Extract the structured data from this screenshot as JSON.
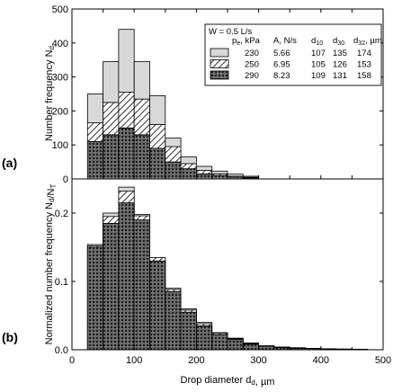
{
  "chart_data": [
    {
      "panel": "(a)",
      "type": "bar",
      "stacked": true,
      "ylabel": "Number frequency N_d",
      "xlim": [
        0,
        500
      ],
      "ylim": [
        0,
        500
      ],
      "yticks": [
        0,
        100,
        200,
        300,
        400,
        500
      ],
      "bin_width": 25,
      "x": [
        37.5,
        62.5,
        87.5,
        112.5,
        137.5,
        162.5,
        187.5,
        212.5,
        237.5,
        262.5,
        287.5
      ],
      "series": [
        {
          "name": "290",
          "pattern": "crosshatch",
          "values": [
            110,
            130,
            150,
            130,
            90,
            50,
            30,
            15,
            10,
            5,
            3
          ]
        },
        {
          "name": "250",
          "pattern": "diagonal",
          "values": [
            55,
            95,
            105,
            105,
            70,
            45,
            15,
            10,
            5,
            3,
            2
          ]
        },
        {
          "name": "230",
          "pattern": "light",
          "values": [
            85,
            120,
            185,
            110,
            85,
            25,
            20,
            12,
            8,
            6,
            3
          ]
        }
      ],
      "legend": {
        "title": "W = 0.5 L/s",
        "headers": [
          "p_e, kPa",
          "A, N/s",
          "d_10",
          "d_30",
          "d_32, µm"
        ],
        "rows": [
          {
            "pattern": "light",
            "pe": "230",
            "A": "5.66",
            "d10": "107",
            "d30": "135",
            "d32": "174"
          },
          {
            "pattern": "diagonal",
            "pe": "250",
            "A": "6.95",
            "d10": "105",
            "d30": "126",
            "d32": "153"
          },
          {
            "pattern": "crosshatch",
            "pe": "290",
            "A": "8.23",
            "d10": "109",
            "d30": "131",
            "d32": "158"
          }
        ],
        "placement": "top-right"
      }
    },
    {
      "panel": "(b)",
      "type": "bar",
      "ylabel": "Normalized number frequency N_d/N_T",
      "xlabel": "Drop diameter d_d, µm",
      "xlim": [
        0,
        500
      ],
      "ylim": [
        0,
        0.25
      ],
      "yticks": [
        0.0,
        0.1,
        0.2
      ],
      "xticks": [
        0,
        100,
        200,
        300,
        400,
        500
      ],
      "bin_width": 25,
      "x": [
        37.5,
        62.5,
        87.5,
        112.5,
        137.5,
        162.5,
        187.5,
        212.5,
        237.5,
        262.5,
        287.5,
        312.5,
        337.5,
        362.5,
        387.5,
        412.5,
        437.5,
        462.5
      ],
      "series": [
        {
          "name": "230",
          "pattern": "light",
          "values": [
            0.154,
            0.2,
            0.238,
            0.198,
            0.133,
            0.09,
            0.06,
            0.04,
            0.025,
            0.017,
            0.01,
            0.006,
            0.004,
            0.003,
            0.002,
            0.0015,
            0.001,
            0.0008
          ]
        },
        {
          "name": "250",
          "pattern": "diagonal",
          "values": [
            0.152,
            0.195,
            0.232,
            0.196,
            0.135,
            0.088,
            0.058,
            0.038,
            0.024,
            0.016,
            0.009,
            0.005,
            0.0035,
            0.0025,
            0.002,
            0.0012,
            0.001,
            0.0007
          ]
        },
        {
          "name": "290",
          "pattern": "crosshatch",
          "values": [
            0.15,
            0.185,
            0.215,
            0.19,
            0.13,
            0.085,
            0.055,
            0.035,
            0.022,
            0.015,
            0.008,
            0.005,
            0.003,
            0.002,
            0.0015,
            0.001,
            0.0008,
            0.0005
          ]
        }
      ]
    }
  ],
  "colors": {
    "light": "#d8d8d8",
    "crosshatch_bg": "#6e6e6e",
    "line": "#000000"
  }
}
